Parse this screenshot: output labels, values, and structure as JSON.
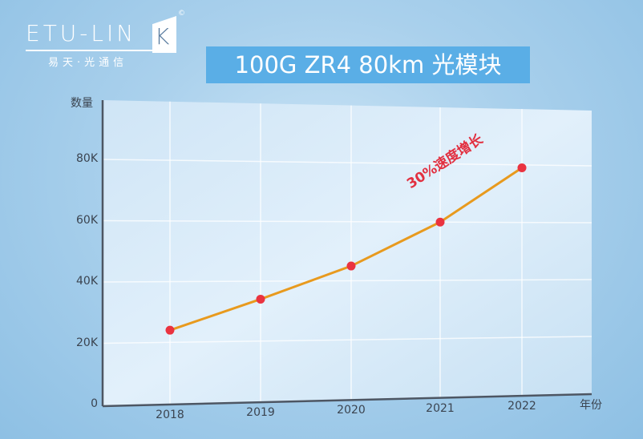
{
  "logo": {
    "wordmark": "ETU-LIN",
    "wordmark_k": "K",
    "registered": "©",
    "subtitle": "易天·光通信"
  },
  "banner": {
    "title": "100G ZR4 80km  光模块",
    "background_color": "#5aaee6"
  },
  "chart_data": {
    "type": "line",
    "title": "100G ZR4 80km 光模块",
    "xlabel": "年份",
    "ylabel": "数量",
    "categories": [
      "2018",
      "2019",
      "2020",
      "2021",
      "2022"
    ],
    "values": [
      24000,
      34000,
      45000,
      60000,
      79000
    ],
    "y_tick_labels": [
      "0",
      "20K",
      "40K",
      "60K",
      "80K"
    ],
    "ylim": [
      0,
      100000
    ],
    "grid": true,
    "line_color": "#e89a1e",
    "marker_color": "#ea3340",
    "annotation": "30%速度增长"
  }
}
